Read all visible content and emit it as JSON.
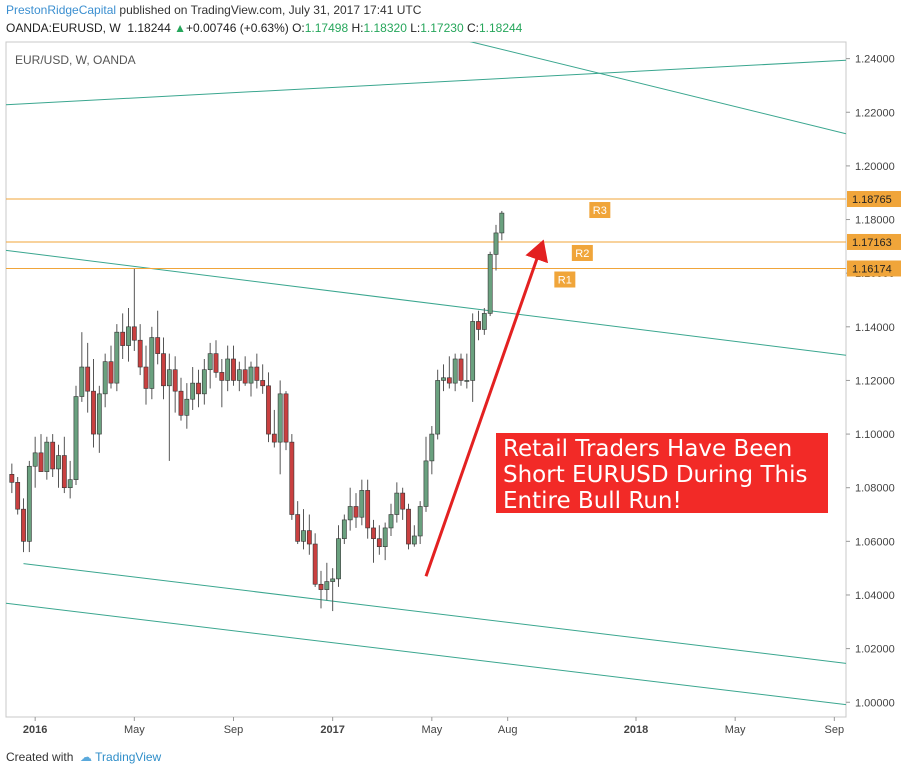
{
  "header": {
    "author": "PrestonRidgeCapital",
    "published": "published on TradingView.com, July 31, 2017 17:41 UTC",
    "symbol": "OANDA:EURUSD, W",
    "last": "1.18244",
    "change_arrow": "▲",
    "change": "+0.00746 (+0.63%)",
    "o_label": "O:",
    "o_value": "1.17498",
    "h_label": "H:",
    "h_value": "1.18320",
    "l_label": "L:",
    "l_value": "1.17230",
    "c_label": "C:",
    "c_value": "1.18244"
  },
  "chart_data": {
    "type": "candlestick",
    "title": "EUR/USD, W, OANDA",
    "ylim": [
      0.9945,
      1.2462
    ],
    "y_ticks": [
      "1.24000",
      "1.22000",
      "1.20000",
      "1.18000",
      "1.16000",
      "1.14000",
      "1.12000",
      "1.10000",
      "1.08000",
      "1.06000",
      "1.04000",
      "1.02000",
      "1.00000"
    ],
    "x_ticks": [
      {
        "label": "2016",
        "i": 4,
        "bold": true
      },
      {
        "label": "May",
        "i": 21,
        "bold": false
      },
      {
        "label": "Sep",
        "i": 38,
        "bold": false
      },
      {
        "label": "2017",
        "i": 55,
        "bold": true
      },
      {
        "label": "May",
        "i": 72,
        "bold": false
      },
      {
        "label": "Aug",
        "i": 85,
        "bold": false
      },
      {
        "label": "2018",
        "i": 107,
        "bold": true
      },
      {
        "label": "May",
        "i": 124,
        "bold": false
      },
      {
        "label": "Sep",
        "i": 141,
        "bold": false
      }
    ],
    "x_range": [
      -1,
      143
    ],
    "candles": [
      [
        1.085,
        1.089,
        1.078,
        1.082
      ],
      [
        1.082,
        1.084,
        1.07,
        1.072
      ],
      [
        1.072,
        1.076,
        1.056,
        1.06
      ],
      [
        1.06,
        1.09,
        1.056,
        1.088
      ],
      [
        1.088,
        1.099,
        1.08,
        1.093
      ],
      [
        1.093,
        1.1,
        1.086,
        1.086
      ],
      [
        1.086,
        1.099,
        1.083,
        1.097
      ],
      [
        1.097,
        1.1,
        1.084,
        1.087
      ],
      [
        1.087,
        1.096,
        1.08,
        1.092
      ],
      [
        1.092,
        1.099,
        1.078,
        1.08
      ],
      [
        1.08,
        1.09,
        1.076,
        1.083
      ],
      [
        1.083,
        1.118,
        1.081,
        1.114
      ],
      [
        1.114,
        1.138,
        1.112,
        1.125
      ],
      [
        1.125,
        1.134,
        1.108,
        1.116
      ],
      [
        1.116,
        1.128,
        1.095,
        1.1
      ],
      [
        1.1,
        1.118,
        1.093,
        1.115
      ],
      [
        1.115,
        1.13,
        1.11,
        1.127
      ],
      [
        1.127,
        1.133,
        1.117,
        1.119
      ],
      [
        1.119,
        1.141,
        1.116,
        1.138
      ],
      [
        1.138,
        1.145,
        1.128,
        1.133
      ],
      [
        1.133,
        1.147,
        1.127,
        1.14
      ],
      [
        1.14,
        1.1616,
        1.131,
        1.135
      ],
      [
        1.135,
        1.141,
        1.122,
        1.125
      ],
      [
        1.125,
        1.133,
        1.111,
        1.117
      ],
      [
        1.117,
        1.14,
        1.113,
        1.136
      ],
      [
        1.136,
        1.146,
        1.126,
        1.13
      ],
      [
        1.13,
        1.136,
        1.113,
        1.118
      ],
      [
        1.118,
        1.13,
        1.09,
        1.124
      ],
      [
        1.124,
        1.129,
        1.108,
        1.116
      ],
      [
        1.116,
        1.121,
        1.105,
        1.107
      ],
      [
        1.107,
        1.119,
        1.102,
        1.113
      ],
      [
        1.113,
        1.125,
        1.109,
        1.119
      ],
      [
        1.119,
        1.124,
        1.11,
        1.115
      ],
      [
        1.115,
        1.128,
        1.111,
        1.124
      ],
      [
        1.124,
        1.134,
        1.117,
        1.13
      ],
      [
        1.13,
        1.135,
        1.121,
        1.123
      ],
      [
        1.123,
        1.128,
        1.11,
        1.12
      ],
      [
        1.12,
        1.133,
        1.116,
        1.128
      ],
      [
        1.128,
        1.133,
        1.118,
        1.12
      ],
      [
        1.12,
        1.127,
        1.116,
        1.124
      ],
      [
        1.124,
        1.129,
        1.118,
        1.119
      ],
      [
        1.119,
        1.127,
        1.114,
        1.125
      ],
      [
        1.125,
        1.13,
        1.117,
        1.12
      ],
      [
        1.12,
        1.126,
        1.115,
        1.118
      ],
      [
        1.118,
        1.123,
        1.097,
        1.1
      ],
      [
        1.1,
        1.109,
        1.095,
        1.097
      ],
      [
        1.097,
        1.12,
        1.085,
        1.115
      ],
      [
        1.115,
        1.116,
        1.094,
        1.097
      ],
      [
        1.097,
        1.1,
        1.068,
        1.07
      ],
      [
        1.07,
        1.075,
        1.059,
        1.06
      ],
      [
        1.06,
        1.072,
        1.057,
        1.064
      ],
      [
        1.064,
        1.07,
        1.055,
        1.059
      ],
      [
        1.059,
        1.063,
        1.043,
        1.044
      ],
      [
        1.044,
        1.049,
        1.035,
        1.042
      ],
      [
        1.042,
        1.052,
        1.038,
        1.045
      ],
      [
        1.045,
        1.05,
        1.034,
        1.046
      ],
      [
        1.046,
        1.066,
        1.043,
        1.061
      ],
      [
        1.061,
        1.07,
        1.059,
        1.068
      ],
      [
        1.068,
        1.08,
        1.064,
        1.073
      ],
      [
        1.073,
        1.078,
        1.065,
        1.069
      ],
      [
        1.069,
        1.083,
        1.066,
        1.079
      ],
      [
        1.079,
        1.083,
        1.061,
        1.065
      ],
      [
        1.065,
        1.068,
        1.052,
        1.061
      ],
      [
        1.061,
        1.066,
        1.055,
        1.058
      ],
      [
        1.058,
        1.067,
        1.053,
        1.065
      ],
      [
        1.065,
        1.074,
        1.062,
        1.07
      ],
      [
        1.07,
        1.082,
        1.067,
        1.078
      ],
      [
        1.078,
        1.08,
        1.068,
        1.072
      ],
      [
        1.072,
        1.074,
        1.057,
        1.059
      ],
      [
        1.059,
        1.066,
        1.058,
        1.062
      ],
      [
        1.062,
        1.075,
        1.059,
        1.073
      ],
      [
        1.073,
        1.099,
        1.071,
        1.09
      ],
      [
        1.09,
        1.103,
        1.085,
        1.1
      ],
      [
        1.1,
        1.124,
        1.098,
        1.12
      ],
      [
        1.12,
        1.126,
        1.116,
        1.121
      ],
      [
        1.121,
        1.129,
        1.117,
        1.119
      ],
      [
        1.119,
        1.13,
        1.116,
        1.128
      ],
      [
        1.128,
        1.13,
        1.118,
        1.12
      ],
      [
        1.12,
        1.13,
        1.117,
        1.12
      ],
      [
        1.12,
        1.145,
        1.112,
        1.142
      ],
      [
        1.142,
        1.146,
        1.135,
        1.139
      ],
      [
        1.139,
        1.147,
        1.137,
        1.145
      ],
      [
        1.145,
        1.168,
        1.144,
        1.167
      ],
      [
        1.167,
        1.178,
        1.161,
        1.175
      ],
      [
        1.175,
        1.1832,
        1.1723,
        1.1824
      ]
    ],
    "levels": [
      {
        "label": "R3",
        "price": 1.18765,
        "price_label": "1.18765"
      },
      {
        "label": "R2",
        "price": 1.17163,
        "price_label": "1.17163"
      },
      {
        "label": "R1",
        "price": 1.16174,
        "price_label": "1.16174"
      }
    ],
    "trend_lines": [
      [
        [
          -1,
          1.2228
        ],
        [
          143,
          1.2394
        ]
      ],
      [
        [
          70,
          1.2509
        ],
        [
          143,
          1.212
        ]
      ],
      [
        [
          -1,
          1.1685
        ],
        [
          143,
          1.1294
        ]
      ],
      [
        [
          2,
          1.0517
        ],
        [
          143,
          1.0145
        ]
      ],
      [
        [
          -1,
          1.0369
        ],
        [
          143,
          0.9991
        ]
      ]
    ],
    "arrow": [
      [
        71,
        1.047
      ],
      [
        91,
        1.1715
      ]
    ],
    "annotation": "Retail Traders Have Been Short EURUSD During This Entire Bull Run!"
  },
  "footer": {
    "created_with": "Created with",
    "brand": "TradingView"
  },
  "colors": {
    "up": "#6aa17f",
    "down": "#c94040",
    "level": "#f0a53a",
    "trend": "#3aa68f",
    "arrow": "#e32121",
    "annotation_bg": "#f22a27"
  }
}
